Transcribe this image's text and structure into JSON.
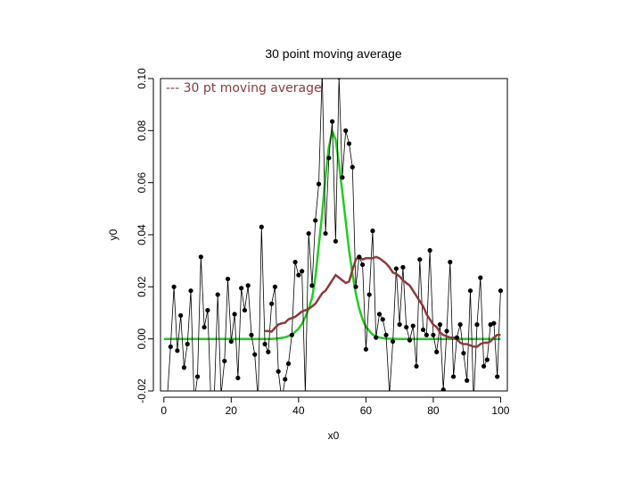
{
  "chart_data": {
    "type": "scatter",
    "title": "30 point moving average",
    "xlabel": "x0",
    "ylabel": "y0",
    "xlim": [
      -1,
      102
    ],
    "ylim": [
      -0.02,
      0.1
    ],
    "xticks": [
      0,
      20,
      40,
      60,
      80,
      100
    ],
    "yticks": [
      -0.02,
      0.0,
      0.02,
      0.04,
      0.06,
      0.08,
      0.1
    ],
    "xtick_labels": [
      "0",
      "20",
      "40",
      "60",
      "80",
      "100"
    ],
    "ytick_labels": [
      "-0.02",
      "0.00",
      "0.02",
      "0.04",
      "0.06",
      "0.08",
      "0.10"
    ],
    "grid": false,
    "legend": {
      "text": "--- 30 pt moving average",
      "color": "#8b3a3a",
      "position": "top-left"
    },
    "colors": {
      "data": "#000000",
      "gaussian": "#22cc22",
      "moving_average": "#8b3a3a"
    },
    "series": [
      {
        "style": "points-and-lines",
        "x": [
          1,
          2,
          3,
          4,
          5,
          6,
          7,
          8,
          9,
          10,
          11,
          12,
          13,
          14,
          15,
          16,
          17,
          18,
          19,
          20,
          21,
          22,
          23,
          24,
          25,
          26,
          27,
          28,
          29,
          30,
          31,
          32,
          33,
          34,
          35,
          36,
          37,
          38,
          39,
          40,
          41,
          42,
          43,
          44,
          45,
          46,
          47,
          48,
          49,
          50,
          51,
          52,
          53,
          54,
          55,
          56,
          57,
          58,
          59,
          60,
          61,
          62,
          63,
          64,
          65,
          66,
          67,
          68,
          69,
          70,
          71,
          72,
          73,
          74,
          75,
          76,
          77,
          78,
          79,
          80,
          81,
          82,
          83,
          84,
          85,
          86,
          87,
          88,
          89,
          90,
          91,
          92,
          93,
          94,
          95,
          96,
          97,
          98,
          99,
          100
        ],
        "y": [
          -0.0225,
          -0.003,
          0.02,
          -0.0045,
          0.009,
          -0.011,
          -0.002,
          0.0185,
          -0.024,
          -0.0145,
          0.0315,
          0.0045,
          0.011,
          -0.025,
          -0.0215,
          0.017,
          -0.0215,
          -0.0085,
          0.023,
          -0.001,
          0.0095,
          -0.015,
          0.0195,
          0.011,
          0.0205,
          0.0015,
          -0.006,
          -0.024,
          0.043,
          -0.002,
          -0.005,
          0.0135,
          0.02,
          -0.0125,
          -0.0235,
          -0.0155,
          -0.0095,
          0.0015,
          0.0295,
          0.0245,
          0.026,
          -0.021,
          0.0405,
          0.0205,
          0.0455,
          0.0595,
          0.1025,
          0.0405,
          0.0695,
          0.0835,
          0.0375,
          0.1005,
          0.062,
          0.08,
          0.075,
          0.066,
          0.02,
          0.0315,
          0.0285,
          -0.004,
          0.017,
          0.0415,
          0.0005,
          0.0095,
          0.0075,
          0.0015,
          -0.0215,
          -0.001,
          0.027,
          0.0055,
          0.0275,
          0.0045,
          -0.0005,
          0.005,
          -0.0105,
          0.0305,
          0.0035,
          0.0015,
          0.034,
          0.0015,
          -0.005,
          0.0055,
          -0.0195,
          0.003,
          0.0295,
          -0.0145,
          0.0005,
          0.0055,
          -0.0055,
          -0.016,
          0.0185,
          -0.024,
          0.0055,
          0.0235,
          -0.0105,
          -0.008,
          0.0055,
          0.006,
          -0.0145,
          0.0185
        ]
      },
      {
        "style": "line",
        "x": [
          0,
          10,
          20,
          30,
          32,
          34,
          36,
          38,
          40,
          41,
          42,
          43,
          44,
          45,
          46,
          47,
          48,
          49,
          50,
          51,
          52,
          53,
          54,
          55,
          56,
          57,
          58,
          59,
          60,
          62,
          64,
          66,
          70,
          80,
          90,
          100
        ],
        "y": [
          0.0,
          0.0,
          0.0,
          0.0,
          0.0,
          0.0002,
          0.0006,
          0.0016,
          0.0039,
          0.0058,
          0.0084,
          0.0117,
          0.0157,
          0.0236,
          0.0359,
          0.048,
          0.0627,
          0.0736,
          0.0798,
          0.0765,
          0.0673,
          0.0565,
          0.0452,
          0.034,
          0.0249,
          0.0175,
          0.0117,
          0.0075,
          0.0046,
          0.0016,
          0.0005,
          0.0001,
          0.0,
          0.0,
          0.0,
          0.0
        ]
      },
      {
        "style": "line",
        "x": [
          30,
          31,
          32,
          33,
          34,
          35,
          36,
          37,
          38,
          39,
          40,
          41,
          42,
          43,
          44,
          45,
          46,
          47,
          48,
          49,
          50,
          51,
          52,
          53,
          54,
          55,
          56,
          57,
          58,
          59,
          60,
          61,
          62,
          63,
          64,
          65,
          66,
          67,
          68,
          69,
          70,
          71,
          72,
          73,
          74,
          75,
          76,
          77,
          78,
          79,
          80,
          81,
          82,
          83,
          84,
          85,
          86,
          87,
          88,
          89,
          90,
          91,
          92,
          93,
          94,
          95,
          96,
          97,
          98,
          99,
          100
        ],
        "y": [
          0.003,
          0.003,
          0.0028,
          0.0042,
          0.0055,
          0.006,
          0.0062,
          0.0075,
          0.008,
          0.0085,
          0.0095,
          0.0105,
          0.011,
          0.0115,
          0.0125,
          0.0135,
          0.0155,
          0.0175,
          0.0185,
          0.0205,
          0.0225,
          0.0245,
          0.0235,
          0.0225,
          0.0215,
          0.022,
          0.0265,
          0.0305,
          0.0315,
          0.0305,
          0.031,
          0.031,
          0.031,
          0.0315,
          0.031,
          0.03,
          0.029,
          0.0275,
          0.0255,
          0.025,
          0.024,
          0.0225,
          0.0215,
          0.0205,
          0.0185,
          0.0165,
          0.0145,
          0.0125,
          0.0095,
          0.0075,
          0.0055,
          0.0045,
          0.0025,
          0.0015,
          0.001,
          0.0005,
          0.0005,
          0.0,
          -0.0015,
          -0.002,
          -0.002,
          -0.0025,
          -0.003,
          -0.003,
          -0.002,
          -0.0015,
          -0.0015,
          -0.001,
          0.0005,
          0.0015,
          0.0015
        ]
      }
    ]
  }
}
